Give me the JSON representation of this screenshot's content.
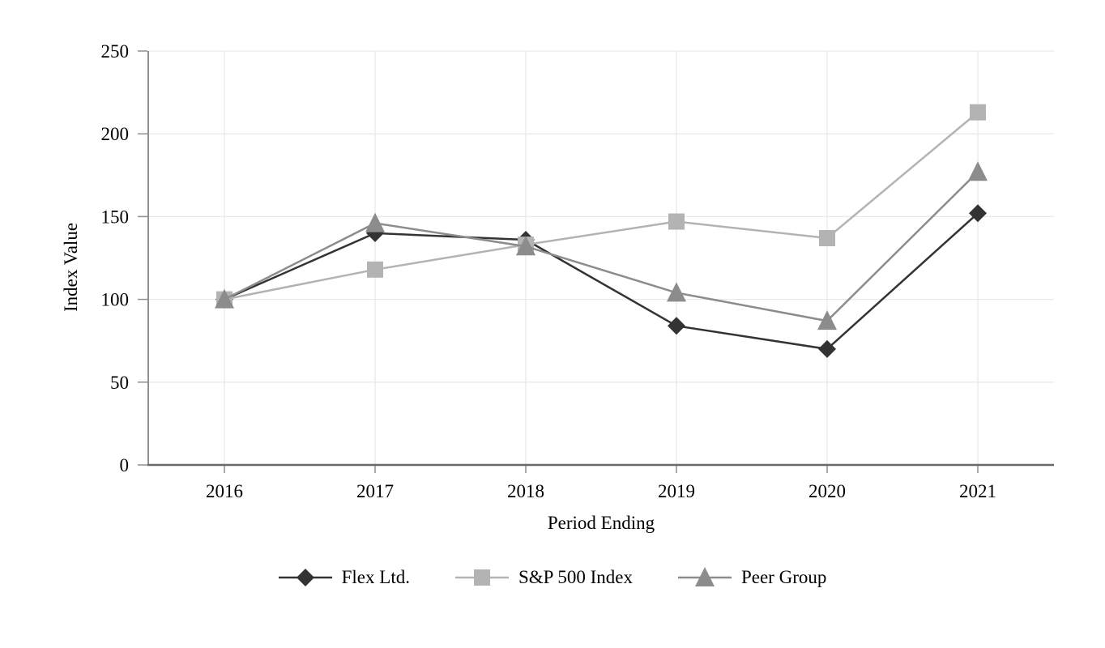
{
  "chart_data": {
    "type": "line",
    "title": "",
    "xlabel": "Period Ending",
    "ylabel": "Index Value",
    "categories": [
      "2016",
      "2017",
      "2018",
      "2019",
      "2020",
      "2021"
    ],
    "series": [
      {
        "name": "Flex Ltd.",
        "marker": "diamond",
        "color": "#333333",
        "values": [
          100,
          140,
          136,
          84,
          70,
          152
        ]
      },
      {
        "name": "S&P 500 Index",
        "marker": "square",
        "color": "#b3b3b3",
        "values": [
          100,
          118,
          133,
          147,
          137,
          213
        ]
      },
      {
        "name": "Peer Group",
        "marker": "triangle",
        "color": "#8c8c8c",
        "values": [
          100,
          146,
          132,
          104,
          87,
          177
        ]
      }
    ],
    "ylim": [
      0,
      250
    ],
    "yticks": [
      0,
      50,
      100,
      150,
      200,
      250
    ],
    "grid": true,
    "legend_position": "bottom",
    "colors": {
      "grid": "#e9e9e9",
      "axis_left": "#8f8f8f",
      "axis_bottom": "#686868",
      "tick": "#8f8f8f",
      "text": "#000000",
      "background": "#ffffff"
    }
  }
}
